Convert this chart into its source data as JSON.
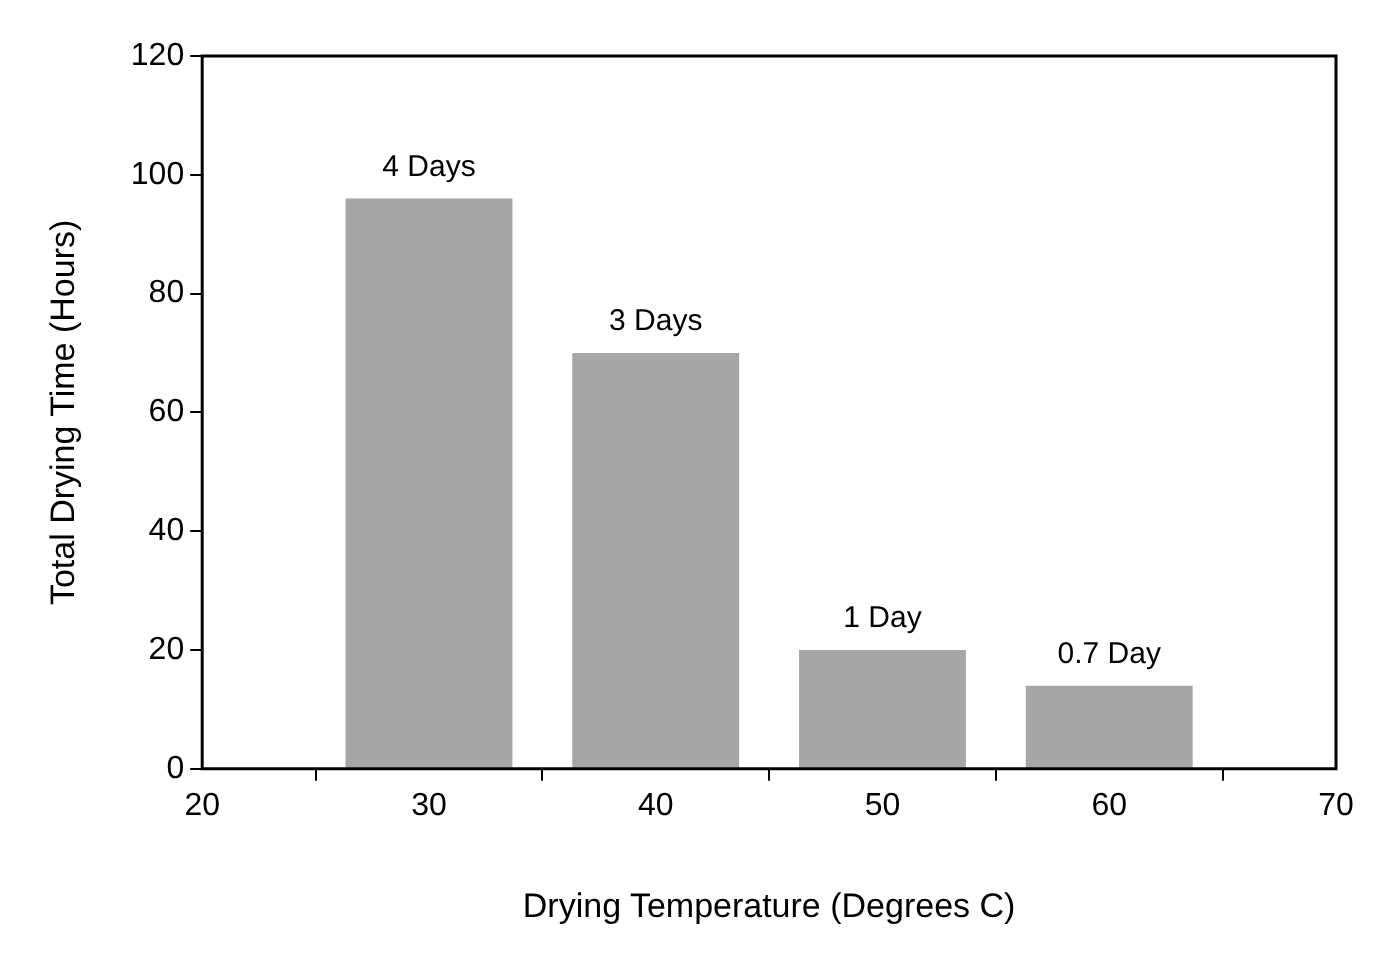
{
  "chart_data": {
    "type": "bar",
    "xlabel": "Drying Temperature (Degrees C)",
    "ylabel": "Total Drying Time (Hours)",
    "x": [
      30,
      40,
      50,
      60
    ],
    "values": [
      96,
      70,
      20,
      14
    ],
    "color": "#a6a6a6",
    "annotations": [
      {
        "text": "4 Days",
        "x": 30,
        "y": 96
      },
      {
        "text": "3 Days",
        "x": 40,
        "y": 70
      },
      {
        "text": "1 Day",
        "x": 50,
        "y": 20
      },
      {
        "text": "0.7 Day",
        "x": 60,
        "y": 14
      }
    ],
    "xlim": [
      20,
      70
    ],
    "xticks": [
      20,
      30,
      40,
      50,
      60,
      70
    ],
    "ylim": [
      0,
      120
    ],
    "yticks": [
      0,
      20,
      40,
      60,
      80,
      100,
      120
    ],
    "grid": false,
    "legend": false
  }
}
